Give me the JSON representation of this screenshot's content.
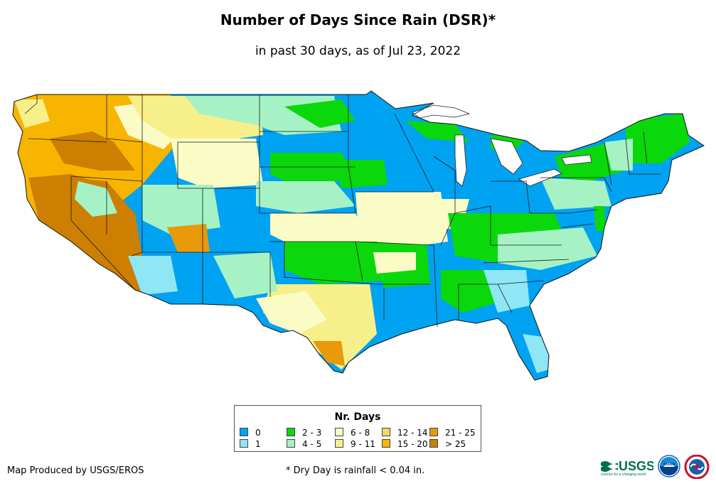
{
  "header": {
    "title": "Number of Days Since Rain (DSR)*",
    "subtitle": "in past 30 days, as of Jul 23, 2022"
  },
  "legend": {
    "title": "Nr. Days",
    "items": [
      {
        "label": "0",
        "color": "#00a2f2"
      },
      {
        "label": "1",
        "color": "#8fe6f5"
      },
      {
        "label": "2 - 3",
        "color": "#0ad80a"
      },
      {
        "label": "4 - 5",
        "color": "#a6f2c4"
      },
      {
        "label": "6 - 8",
        "color": "#fbfbc6"
      },
      {
        "label": "9 - 11",
        "color": "#f7f08a"
      },
      {
        "label": "12 - 14",
        "color": "#f2d66b"
      },
      {
        "label": "15 - 20",
        "color": "#f7b500"
      },
      {
        "label": "21 - 25",
        "color": "#e89a0a"
      },
      {
        "label": "> 25",
        "color": "#cc7f00"
      }
    ]
  },
  "footer": {
    "credit": "Map Produced by USGS/EROS",
    "footnote": "* Dry Day is rainfall < 0.04 in."
  },
  "logos": {
    "usgs_text": "USGS",
    "usgs_tagline": "science for a changing world",
    "noaa_text": "NOAA"
  }
}
